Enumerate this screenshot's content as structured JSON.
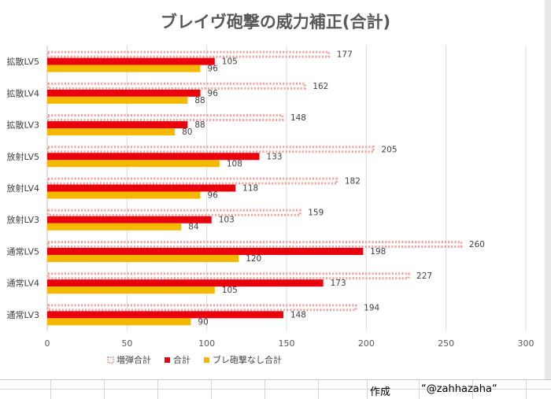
{
  "sheet": {
    "credit_label": "作成",
    "credit_value": "“@zahhazaha“"
  },
  "chart_data": {
    "type": "bar",
    "orientation": "horizontal",
    "title": "ブレイヴ砲撃の威力補正(合計)",
    "categories": [
      "拡散LV5",
      "拡散LV4",
      "拡散LV3",
      "放射LV5",
      "放射LV4",
      "放射LV3",
      "通常LV5",
      "通常LV4",
      "通常LV3"
    ],
    "series": [
      {
        "name": "増弾合計",
        "values": [
          177,
          162,
          148,
          205,
          182,
          159,
          260,
          227,
          194
        ],
        "color": "#f4a09a",
        "style": "dotted-outline"
      },
      {
        "name": "合計",
        "values": [
          105,
          96,
          88,
          133,
          118,
          103,
          198,
          173,
          148
        ],
        "color": "#e8000c",
        "style": "solid"
      },
      {
        "name": "ブレ砲撃なし合計",
        "values": [
          96,
          88,
          80,
          108,
          96,
          84,
          120,
          105,
          90
        ],
        "color": "#f5b800",
        "style": "solid"
      }
    ],
    "xlim": [
      0,
      300
    ],
    "xticks": [
      0,
      50,
      100,
      150,
      200,
      250,
      300
    ],
    "grid": true,
    "legend_position": "bottom",
    "data_labels": true
  }
}
